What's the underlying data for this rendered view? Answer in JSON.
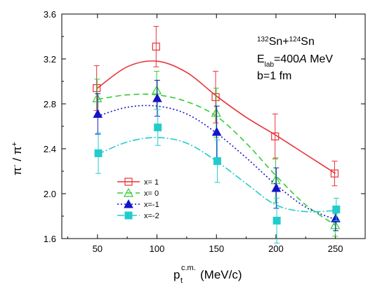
{
  "chart_data": {
    "type": "line",
    "xlabel": {
      "main": "p",
      "sub": "t",
      "sup": "c.m.",
      "rest": "(MeV/c)"
    },
    "ylabel": {
      "a": "π",
      "a_sup": "-",
      "sep": " / ",
      "b": "π",
      "b_sup": "+"
    },
    "xlim": [
      20,
      275
    ],
    "ylim": [
      1.6,
      3.6
    ],
    "xticks": [
      50,
      100,
      150,
      200,
      250
    ],
    "xtick_labels": [
      "50",
      "100",
      "150",
      "200",
      "250"
    ],
    "yticks": [
      1.6,
      2.0,
      2.4,
      2.8,
      3.2,
      3.6
    ],
    "ytick_labels": [
      "1.6",
      "2.0",
      "2.4",
      "2.8",
      "3.2",
      "3.6"
    ],
    "annotation": {
      "reaction": {
        "a_sup": "132",
        "a": "Sn+",
        "b_sup": "124",
        "b": "Sn"
      },
      "energy": {
        "e": "E",
        "e_sub": "lab",
        "eq": "=400",
        "unit_it": "A",
        "unit": " MeV"
      },
      "impact": "b=1 fm"
    },
    "legend_position": "bottom-left",
    "series": [
      {
        "name": "x= 1",
        "color": "#e8333a",
        "dash": "",
        "marker": "open-square",
        "x": [
          50,
          100,
          150,
          200,
          250
        ],
        "y": [
          2.94,
          3.31,
          2.86,
          2.51,
          2.18
        ],
        "err": [
          0.2,
          0.18,
          0.23,
          0.2,
          0.11
        ],
        "curve_x": [
          50,
          75,
          100,
          125,
          150,
          175,
          200,
          225,
          250
        ],
        "curve_y": [
          2.94,
          3.13,
          3.18,
          3.08,
          2.87,
          2.68,
          2.52,
          2.35,
          2.18
        ]
      },
      {
        "name": "x= 0",
        "color": "#33cc33",
        "dash": "8,5",
        "marker": "open-triangle",
        "x": [
          50,
          100,
          150,
          200,
          250
        ],
        "y": [
          2.85,
          2.92,
          2.72,
          2.12,
          1.72
        ],
        "err": [
          0.17,
          0.17,
          0.22,
          0.2,
          0.1
        ],
        "curve_x": [
          50,
          75,
          100,
          125,
          150,
          175,
          200,
          225,
          250
        ],
        "curve_y": [
          2.84,
          2.88,
          2.88,
          2.82,
          2.69,
          2.45,
          2.16,
          1.9,
          1.72
        ]
      },
      {
        "name": "x=-1",
        "color": "#1414c8",
        "dash": "2,3",
        "marker": "filled-triangle",
        "x": [
          50,
          100,
          150,
          200,
          250
        ],
        "y": [
          2.71,
          2.85,
          2.55,
          2.05,
          1.78
        ],
        "err": [
          0.18,
          0.16,
          0.23,
          0.18,
          0.11
        ],
        "curve_x": [
          50,
          75,
          100,
          125,
          150,
          175,
          200,
          225,
          250
        ],
        "curve_y": [
          2.69,
          2.77,
          2.78,
          2.71,
          2.54,
          2.32,
          2.08,
          1.88,
          1.77
        ]
      },
      {
        "name": "x=-2",
        "color": "#22cccc",
        "dash": "10,3,2,3",
        "marker": "filled-square",
        "x": [
          50,
          100,
          150,
          200,
          250
        ],
        "y": [
          2.36,
          2.59,
          2.29,
          1.76,
          1.86
        ],
        "err": [
          0.18,
          0.16,
          0.19,
          0.2,
          0.1
        ],
        "curve_x": [
          50,
          75,
          100,
          125,
          150,
          175,
          200,
          225,
          250
        ],
        "curve_y": [
          2.35,
          2.46,
          2.5,
          2.45,
          2.29,
          2.09,
          1.9,
          1.84,
          1.85
        ]
      }
    ]
  }
}
